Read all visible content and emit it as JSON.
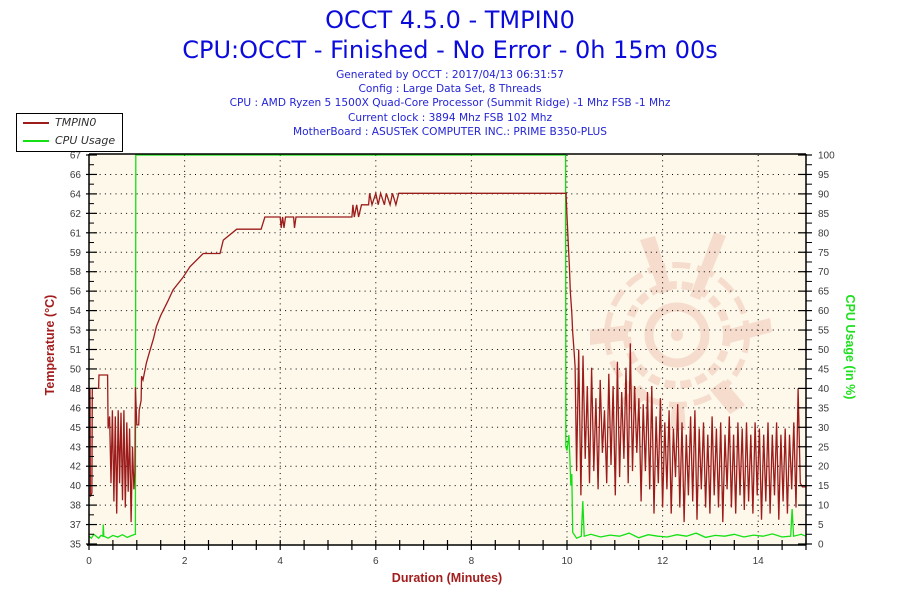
{
  "header": {
    "title": "OCCT 4.5.0 - TMPIN0",
    "subtitle": "CPU:OCCT - Finished - No Error - 0h 15m 00s",
    "info": [
      "Generated by OCCT : 2017/04/13 06:31:57",
      "Config : Large Data Set, 8 Threads",
      "CPU : AMD Ryzen 5 1500X Quad-Core Processor (Summit Ridge) -1 Mhz FSB -1 Mhz",
      "Current clock : 3894 Mhz FSB 102 Mhz",
      "MotherBoard : ASUSTeK COMPUTER INC.: PRIME B350-PLUS"
    ]
  },
  "legend": [
    {
      "label": "TMPIN0",
      "color": "#9c1b1b",
      "icon": "line-swatch"
    },
    {
      "label": "CPU Usage",
      "color": "#14e014",
      "icon": "line-swatch"
    }
  ],
  "colors": {
    "title": "#0b0bdc",
    "info": "#2424d6",
    "plot_background": "#fdf8ea",
    "temperature_axis": "#a31d1d",
    "cpu_axis": "#1ee01e",
    "grid": "#000000",
    "watermark": "#d03a22"
  },
  "chart_data": {
    "type": "line",
    "title": "OCCT 4.5.0 - TMPIN0",
    "subtitle": "CPU:OCCT - Finished - No Error - 0h 15m 00s",
    "xlabel": "Duration (Minutes)",
    "ylabel": "Temperature (°C)",
    "y2label": "CPU Usage (in %)",
    "xlim": [
      0,
      15
    ],
    "ylim": [
      35,
      67
    ],
    "y2lim": [
      0,
      100
    ],
    "xticks": [
      0,
      2,
      4,
      6,
      8,
      10,
      12,
      14
    ],
    "xticks_minor_step": 0.5,
    "yticks": [
      "35",
      "37",
      "38",
      "40",
      "42",
      "43",
      "45",
      "46",
      "48",
      "50",
      "51",
      "53",
      "54",
      "56",
      "58",
      "59",
      "61",
      "62",
      "64",
      "66",
      "67"
    ],
    "y2ticks": [
      0,
      5,
      10,
      15,
      20,
      25,
      30,
      35,
      40,
      45,
      50,
      55,
      60,
      65,
      70,
      75,
      80,
      85,
      90,
      95,
      100
    ],
    "grid": true,
    "legend_position": "top-left",
    "series": [
      {
        "name": "CPU Usage",
        "axis": "right",
        "color": "#14e014",
        "points": [
          [
            0,
            2
          ],
          [
            0.05,
            1.5
          ],
          [
            0.1,
            2.5
          ],
          [
            0.15,
            2
          ],
          [
            0.2,
            1.5
          ],
          [
            0.25,
            2.2
          ],
          [
            0.29,
            2
          ],
          [
            0.3,
            5
          ],
          [
            0.31,
            2
          ],
          [
            0.4,
            1.5
          ],
          [
            0.5,
            2.2
          ],
          [
            0.6,
            1.8
          ],
          [
            0.7,
            2.4
          ],
          [
            0.8,
            1.7
          ],
          [
            0.9,
            2.2
          ],
          [
            0.97,
            2.5
          ],
          [
            0.98,
            100
          ],
          [
            9.97,
            100
          ],
          [
            9.975,
            25
          ],
          [
            10.0,
            24
          ],
          [
            10.04,
            28
          ],
          [
            10.06,
            22
          ],
          [
            10.08,
            15
          ],
          [
            10.1,
            18
          ],
          [
            10.12,
            3
          ],
          [
            10.2,
            1.5
          ],
          [
            10.3,
            2
          ],
          [
            10.33,
            11
          ],
          [
            10.36,
            2
          ],
          [
            10.5,
            2.5
          ],
          [
            10.7,
            1.8
          ],
          [
            10.9,
            2.3
          ],
          [
            11.1,
            2
          ],
          [
            11.3,
            2.8
          ],
          [
            11.5,
            1.6
          ],
          [
            11.7,
            2.4
          ],
          [
            11.9,
            2
          ],
          [
            12.1,
            1.8
          ],
          [
            12.3,
            2.4
          ],
          [
            12.5,
            2
          ],
          [
            12.7,
            2.8
          ],
          [
            12.9,
            1.7
          ],
          [
            13.1,
            2.2
          ],
          [
            13.3,
            2
          ],
          [
            13.5,
            2.5
          ],
          [
            13.7,
            1.8
          ],
          [
            13.9,
            2.3
          ],
          [
            14.1,
            2
          ],
          [
            14.3,
            2.6
          ],
          [
            14.5,
            1.8
          ],
          [
            14.68,
            2
          ],
          [
            14.71,
            9
          ],
          [
            14.74,
            2
          ],
          [
            14.9,
            2.5
          ],
          [
            15,
            2
          ]
        ]
      },
      {
        "name": "TMPIN0",
        "axis": "left",
        "color": "#9c1b1b",
        "points": [
          [
            0,
            47.7
          ],
          [
            0.02,
            47.7
          ],
          [
            0.03,
            38.9
          ],
          [
            0.06,
            39.2
          ],
          [
            0.07,
            47.8
          ],
          [
            0.2,
            47.8
          ],
          [
            0.21,
            48.9
          ],
          [
            0.39,
            48.9
          ],
          [
            0.4,
            44.5
          ],
          [
            0.43,
            45.5
          ],
          [
            0.46,
            40
          ],
          [
            0.49,
            46
          ],
          [
            0.52,
            38.5
          ],
          [
            0.55,
            45.5
          ],
          [
            0.58,
            37.5
          ],
          [
            0.61,
            46
          ],
          [
            0.64,
            40
          ],
          [
            0.67,
            45.8
          ],
          [
            0.7,
            38.6
          ],
          [
            0.73,
            46
          ],
          [
            0.76,
            38
          ],
          [
            0.79,
            45
          ],
          [
            0.82,
            39.3
          ],
          [
            0.85,
            44.5
          ],
          [
            0.88,
            36.8
          ],
          [
            0.91,
            43
          ],
          [
            0.94,
            39.5
          ],
          [
            0.96,
            41
          ],
          [
            0.97,
            47.9
          ],
          [
            1.0,
            44.8
          ],
          [
            1.04,
            44.8
          ],
          [
            1.05,
            46
          ],
          [
            1.09,
            46.8
          ],
          [
            1.1,
            48.8
          ],
          [
            1.13,
            48.5
          ],
          [
            1.2,
            49.9
          ],
          [
            1.26,
            50.7
          ],
          [
            1.35,
            51.9
          ],
          [
            1.41,
            52.9
          ],
          [
            1.5,
            53.8
          ],
          [
            1.64,
            54.9
          ],
          [
            1.76,
            55.9
          ],
          [
            1.96,
            56.9
          ],
          [
            2.11,
            57.8
          ],
          [
            2.39,
            58.9
          ],
          [
            2.74,
            58.9
          ],
          [
            2.81,
            60
          ],
          [
            3.09,
            60.9
          ],
          [
            3.6,
            60.9
          ],
          [
            3.68,
            61.9
          ],
          [
            4.0,
            61.9
          ],
          [
            4.02,
            61
          ],
          [
            4.05,
            61.9
          ],
          [
            4.08,
            61
          ],
          [
            4.11,
            61.9
          ],
          [
            4.28,
            61.9
          ],
          [
            4.3,
            61
          ],
          [
            4.33,
            61.9
          ],
          [
            5.5,
            61.9
          ],
          [
            5.52,
            62.9
          ],
          [
            5.55,
            61.9
          ],
          [
            5.6,
            62.9
          ],
          [
            5.64,
            61.9
          ],
          [
            5.7,
            62.9
          ],
          [
            5.85,
            62.9
          ],
          [
            5.87,
            63.85
          ],
          [
            5.92,
            62.9
          ],
          [
            6.0,
            63.85
          ],
          [
            6.05,
            62.9
          ],
          [
            6.1,
            63.85
          ],
          [
            6.18,
            62.9
          ],
          [
            6.22,
            63.85
          ],
          [
            6.3,
            62.9
          ],
          [
            6.35,
            63.85
          ],
          [
            6.42,
            62.9
          ],
          [
            6.48,
            63.85
          ],
          [
            9.98,
            63.85
          ],
          [
            10.0,
            62
          ],
          [
            10.03,
            59.5
          ],
          [
            10.05,
            57.8
          ],
          [
            10.07,
            55.8
          ],
          [
            10.1,
            54
          ],
          [
            10.12,
            52.4
          ],
          [
            10.15,
            50.7
          ],
          [
            10.17,
            49.6
          ],
          [
            10.2,
            41
          ],
          [
            10.245,
            51
          ],
          [
            10.29,
            39
          ],
          [
            10.335,
            50.5
          ],
          [
            10.38,
            42
          ],
          [
            10.425,
            48
          ],
          [
            10.47,
            40
          ],
          [
            10.515,
            49.5
          ],
          [
            10.56,
            41
          ],
          [
            10.605,
            47
          ],
          [
            10.65,
            39.5
          ],
          [
            10.695,
            48.5
          ],
          [
            10.74,
            42.5
          ],
          [
            10.785,
            46
          ],
          [
            10.83,
            40
          ],
          [
            10.875,
            49
          ],
          [
            10.92,
            41.5
          ],
          [
            10.965,
            48
          ],
          [
            11.01,
            39
          ],
          [
            11.055,
            50
          ],
          [
            11.1,
            40.5
          ],
          [
            11.145,
            47.5
          ],
          [
            11.19,
            42
          ],
          [
            11.235,
            49.5
          ],
          [
            11.28,
            40
          ],
          [
            11.325,
            51.5
          ],
          [
            11.37,
            41
          ],
          [
            11.415,
            48
          ],
          [
            11.46,
            42.5
          ],
          [
            11.505,
            47
          ],
          [
            11.55,
            38.5
          ],
          [
            11.595,
            46.5
          ],
          [
            11.64,
            41
          ],
          [
            11.685,
            47.5
          ],
          [
            11.73,
            39.5
          ],
          [
            11.775,
            48
          ],
          [
            11.82,
            37.5
          ],
          [
            11.865,
            45.5
          ],
          [
            11.91,
            40
          ],
          [
            11.955,
            47
          ],
          [
            12.0,
            38
          ],
          [
            12.045,
            45
          ],
          [
            12.09,
            39.5
          ],
          [
            12.135,
            46
          ],
          [
            12.18,
            37.5
          ],
          [
            12.225,
            44.5
          ],
          [
            12.27,
            40.5
          ],
          [
            12.315,
            46.5
          ],
          [
            12.36,
            38
          ],
          [
            12.405,
            45
          ],
          [
            12.45,
            36.8
          ],
          [
            12.495,
            44
          ],
          [
            12.54,
            39
          ],
          [
            12.585,
            45.5
          ],
          [
            12.63,
            38.5
          ],
          [
            12.675,
            46
          ],
          [
            12.72,
            37
          ],
          [
            12.765,
            44.5
          ],
          [
            12.81,
            39.5
          ],
          [
            12.855,
            45
          ],
          [
            12.9,
            38
          ],
          [
            12.945,
            44
          ],
          [
            12.99,
            37.5
          ],
          [
            13.035,
            45.5
          ],
          [
            13.08,
            39
          ],
          [
            13.125,
            44.5
          ],
          [
            13.17,
            38
          ],
          [
            13.215,
            45
          ],
          [
            13.26,
            36.8
          ],
          [
            13.305,
            44
          ],
          [
            13.35,
            39.5
          ],
          [
            13.395,
            45.5
          ],
          [
            13.44,
            38
          ],
          [
            13.485,
            44
          ],
          [
            13.53,
            37.5
          ],
          [
            13.575,
            45
          ],
          [
            13.62,
            39
          ],
          [
            13.665,
            44.5
          ],
          [
            13.71,
            37.8
          ],
          [
            13.755,
            45
          ],
          [
            13.8,
            38.5
          ],
          [
            13.845,
            44
          ],
          [
            13.89,
            37.5
          ],
          [
            13.935,
            45
          ],
          [
            13.98,
            39
          ],
          [
            14.025,
            44.5
          ],
          [
            14.07,
            37
          ],
          [
            14.115,
            44
          ],
          [
            14.16,
            38.5
          ],
          [
            14.205,
            45
          ],
          [
            14.25,
            37.5
          ],
          [
            14.295,
            44
          ],
          [
            14.34,
            39
          ],
          [
            14.385,
            45
          ],
          [
            14.43,
            37
          ],
          [
            14.475,
            44
          ],
          [
            14.52,
            38.5
          ],
          [
            14.565,
            44.5
          ],
          [
            14.61,
            37.5
          ],
          [
            14.655,
            44
          ],
          [
            14.7,
            39.5
          ],
          [
            14.745,
            45
          ],
          [
            14.79,
            38
          ],
          [
            14.835,
            47.8
          ],
          [
            14.88,
            40
          ],
          [
            14.925,
            39.7
          ],
          [
            15.0,
            39.7
          ]
        ]
      }
    ]
  }
}
